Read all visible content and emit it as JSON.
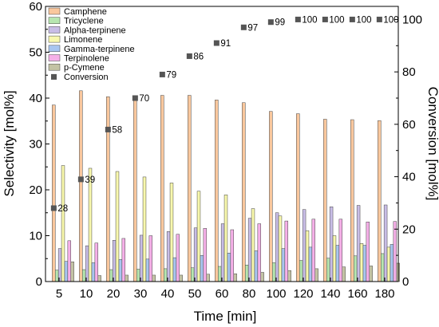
{
  "chart_data": {
    "type": "bar",
    "xlabel": "Time [min]",
    "ylabel": "Selectivity [mol%]",
    "y2label": "Conversion [mol%]",
    "ylim": [
      0,
      60
    ],
    "y2lim": [
      0,
      105
    ],
    "yticks": [
      0,
      10,
      20,
      30,
      40,
      50,
      60
    ],
    "y2ticks": [
      0,
      20,
      40,
      60,
      80,
      100
    ],
    "grid": false,
    "legend_position": "top-left",
    "categories": [
      "5",
      "10",
      "20",
      "30",
      "40",
      "50",
      "60",
      "80",
      "100",
      "120",
      "140",
      "160",
      "180"
    ],
    "series": [
      {
        "name": "Camphene",
        "color": "#f9c79d",
        "values": [
          38.5,
          41.6,
          40.3,
          40.2,
          40.6,
          40.6,
          39.6,
          39.0,
          37.1,
          36.6,
          35.4,
          35.3,
          35.1
        ]
      },
      {
        "name": "Tricyclene",
        "color": "#b7e6b0",
        "values": [
          2.5,
          2.6,
          2.6,
          2.7,
          2.8,
          3.0,
          3.3,
          3.6,
          4.1,
          4.6,
          5.1,
          5.6,
          6.1
        ]
      },
      {
        "name": "Alpha-terpinene",
        "color": "#c8bde6",
        "values": [
          7.2,
          7.8,
          9.0,
          10.1,
          10.9,
          11.7,
          12.6,
          13.8,
          15.0,
          15.7,
          16.3,
          16.6,
          16.7
        ]
      },
      {
        "name": "Limonene",
        "color": "#f8f8ad",
        "values": [
          25.3,
          24.7,
          24.0,
          22.8,
          21.5,
          19.7,
          18.9,
          15.9,
          14.3,
          11.1,
          10.0,
          8.3,
          7.5
        ]
      },
      {
        "name": "Gamma-terpinene",
        "color": "#a9c6f0",
        "values": [
          4.4,
          4.1,
          4.8,
          4.9,
          5.2,
          5.7,
          6.2,
          6.7,
          7.2,
          7.5,
          7.9,
          7.9,
          8.1
        ]
      },
      {
        "name": "Terpinolene",
        "color": "#f5b0e8",
        "values": [
          8.9,
          8.4,
          9.4,
          10.0,
          10.3,
          11.6,
          11.3,
          12.6,
          13.2,
          13.6,
          13.6,
          13.0,
          13.1
        ]
      },
      {
        "name": "p-Cymene",
        "color": "#c3c3a4",
        "values": [
          4.3,
          1.3,
          1.4,
          1.4,
          1.4,
          1.6,
          1.7,
          2.0,
          2.4,
          2.8,
          3.2,
          3.4,
          4.0
        ]
      }
    ],
    "conversion": {
      "name": "Conversion",
      "color": "#555555",
      "values": [
        28,
        39,
        58,
        70,
        79,
        86,
        91,
        97,
        99,
        100,
        100,
        100,
        100
      ],
      "labels": [
        "28",
        "39",
        "58",
        "70",
        "79",
        "86",
        "91",
        "97",
        "99",
        "100",
        "100",
        "100",
        "100"
      ]
    }
  }
}
